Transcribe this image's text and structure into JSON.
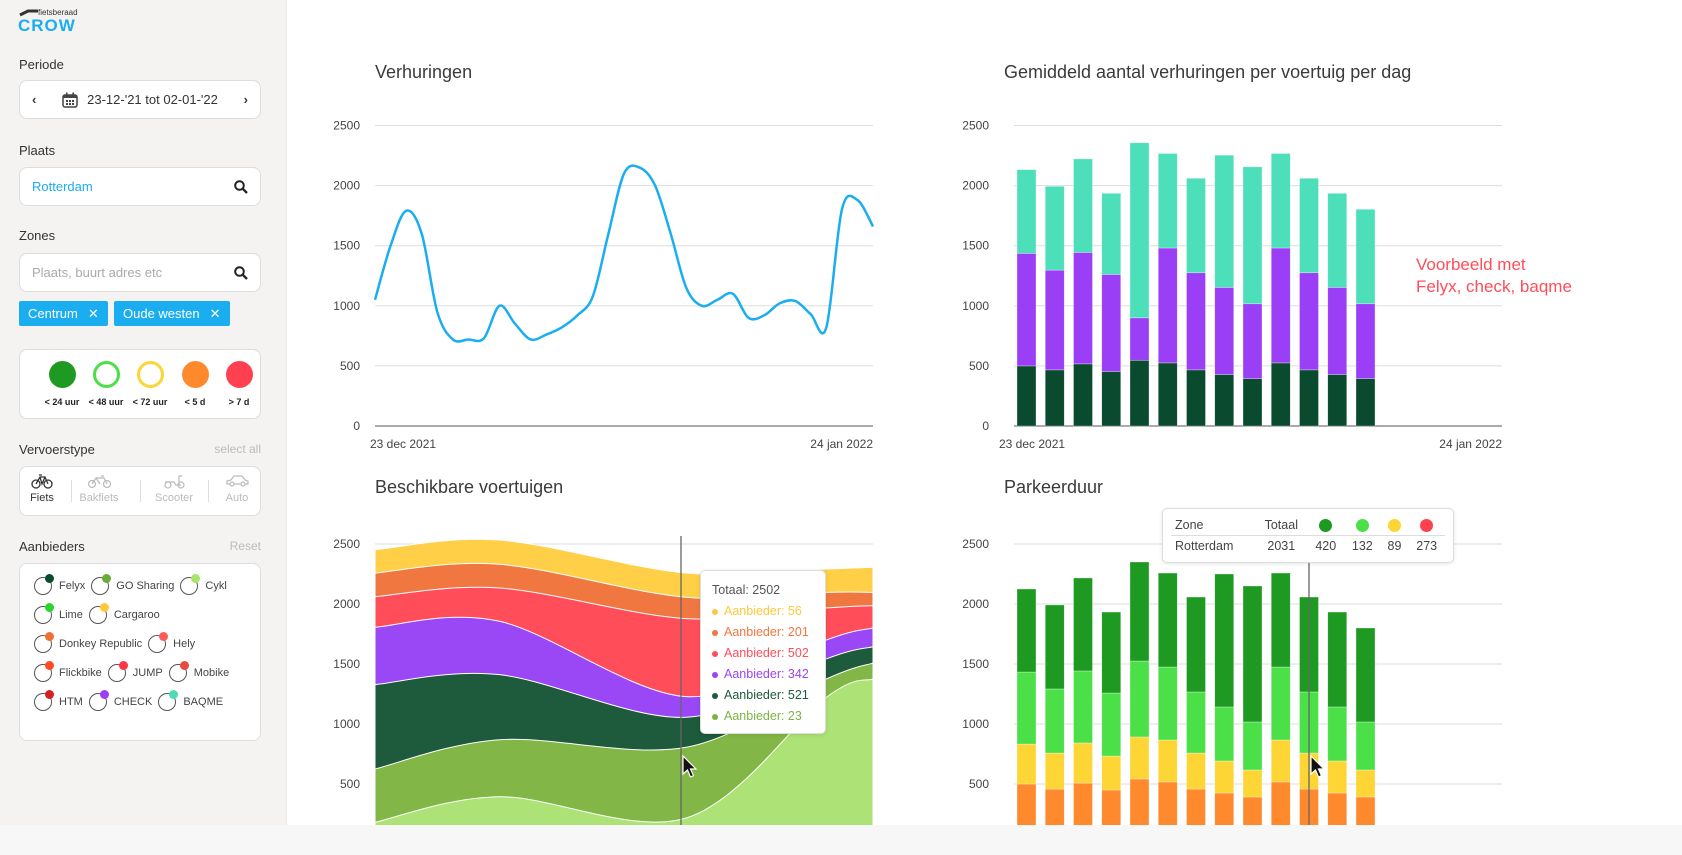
{
  "sidebar": {
    "logo": {
      "small": "fietsberaad",
      "big": "CROW"
    },
    "periode": {
      "label": "Periode",
      "value": "23-12-'21 tot 02-01-'22"
    },
    "plaats": {
      "label": "Plaats",
      "value": "Rotterdam"
    },
    "zones": {
      "label": "Zones",
      "placeholder": "Plaats, buurt adres etc",
      "chips": [
        "Centrum",
        "Oude westen"
      ]
    },
    "duration_legend": [
      {
        "label": "< 24 uur",
        "color": "#1e9a22",
        "filled": true
      },
      {
        "label": "< 48 uur",
        "color": "#4be048",
        "filled": false
      },
      {
        "label": "< 72 uur",
        "color": "#fdd535",
        "filled": false
      },
      {
        "label": "< 5 d",
        "color": "#ff8a2e",
        "filled": true
      },
      {
        "label": "> 7 d",
        "color": "#ff4050",
        "filled": true
      }
    ],
    "vervoerstype": {
      "label": "Vervoerstype",
      "select_all": "select all",
      "types": [
        {
          "label": "Fiets",
          "icon": "bicycle-icon",
          "active": true
        },
        {
          "label": "Bakfiets",
          "icon": "cargo-bike-icon",
          "active": false
        },
        {
          "label": "Scooter",
          "icon": "scooter-icon",
          "active": false
        },
        {
          "label": "Auto",
          "icon": "car-icon",
          "active": false
        }
      ]
    },
    "aanbieders": {
      "label": "Aanbieders",
      "reset": "Reset",
      "providers": [
        {
          "name": "Felyx",
          "color": "#0a4a2e"
        },
        {
          "name": "GO Sharing",
          "color": "#6aaa35"
        },
        {
          "name": "Cykl",
          "color": "#a6e46a"
        },
        {
          "name": "Lime",
          "color": "#2ed42e"
        },
        {
          "name": "Cargaroo",
          "color": "#ffc83a"
        },
        {
          "name": "Donkey Republic",
          "color": "#f07030"
        },
        {
          "name": "Hely",
          "color": "#ff5a5a"
        },
        {
          "name": "Flickbike",
          "color": "#ff4a22"
        },
        {
          "name": "JUMP",
          "color": "#ff3344"
        },
        {
          "name": "Mobike",
          "color": "#e84a40"
        },
        {
          "name": "HTM",
          "color": "#d42020"
        },
        {
          "name": "CHECK",
          "color": "#9a3ff5"
        },
        {
          "name": "BAQME",
          "color": "#4cdbb5"
        }
      ]
    }
  },
  "annotation": [
    "Voorbeeld met",
    "Felyx, check, baqme"
  ],
  "tooltip_area": {
    "total": "Totaal: 2502",
    "items": [
      {
        "label": "Aanbieder: 56",
        "color": "#ffc83a"
      },
      {
        "label": "Aanbieder: 201",
        "color": "#f07840"
      },
      {
        "label": "Aanbieder: 502",
        "color": "#ff4d5a"
      },
      {
        "label": "Aanbieder: 342",
        "color": "#9a44f5"
      },
      {
        "label": "Aanbieder: 521",
        "color": "#1e5a3c"
      },
      {
        "label": "Aanbieder: 23",
        "color": "#7db343"
      }
    ]
  },
  "tooltip_parkeer": {
    "headers": [
      "Zone",
      "Totaal"
    ],
    "header_colors": [
      "#1e9a22",
      "#4be048",
      "#fdd535",
      "#ff4050"
    ],
    "row": [
      "Rotterdam",
      "2031",
      "420",
      "132",
      "89",
      "273"
    ]
  },
  "chart_data": [
    {
      "type": "line",
      "title": "Verhuringen",
      "x": [
        "2021-12-23",
        "2021-12-24",
        "2021-12-25",
        "2021-12-26",
        "2021-12-27",
        "2021-12-28",
        "2021-12-29",
        "2021-12-30",
        "2021-12-31",
        "2022-01-01",
        "2022-01-02",
        "2022-01-03",
        "2022-01-04",
        "2022-01-05",
        "2022-01-06",
        "2022-01-07",
        "2022-01-08",
        "2022-01-09",
        "2022-01-10",
        "2022-01-11",
        "2022-01-12",
        "2022-01-13",
        "2022-01-14",
        "2022-01-15",
        "2022-01-16",
        "2022-01-17",
        "2022-01-18",
        "2022-01-19",
        "2022-01-20",
        "2022-01-21",
        "2022-01-22",
        "2022-01-23",
        "2022-01-24"
      ],
      "y": [
        1050,
        1500,
        1790,
        1600,
        950,
        720,
        720,
        730,
        1000,
        850,
        720,
        760,
        820,
        920,
        1080,
        1600,
        2100,
        2150,
        2000,
        1600,
        1150,
        1000,
        1050,
        1100,
        900,
        920,
        1020,
        1040,
        930,
        820,
        1800,
        1880,
        1660
      ],
      "xticks": [
        "23 dec 2021",
        "24 jan 2022"
      ],
      "yticks": [
        0,
        500,
        1000,
        1500,
        2000,
        2500
      ],
      "ylim": [
        0,
        2500
      ],
      "color": "#1aaef0",
      "grid": true
    },
    {
      "type": "bar",
      "stacked": true,
      "title": "Gemiddeld aantal verhuringen per voertuig per dag",
      "xticks": [
        "23 dec 2021",
        "24 jan 2022"
      ],
      "yticks": [
        0,
        500,
        1000,
        1500,
        2000,
        2500
      ],
      "ylim": [
        0,
        2500
      ],
      "grid": true,
      "series": [
        {
          "color": "#0a4a2e",
          "values": [
            500,
            467,
            517,
            453,
            547,
            525,
            467,
            428,
            394,
            525,
            467,
            428,
            394
          ]
        },
        {
          "color": "#9a3ff5",
          "values": [
            936,
            830,
            927,
            808,
            353,
            956,
            808,
            725,
            623,
            956,
            808,
            725,
            623
          ]
        },
        {
          "color": "#4cdfb9",
          "values": [
            697,
            697,
            778,
            675,
            1456,
            786,
            786,
            1100,
            1139,
            786,
            786,
            783,
            786
          ]
        }
      ]
    },
    {
      "type": "area",
      "stacked": true,
      "title": "Beschikbare voertuigen",
      "x": [
        "2021-12-23",
        "2021-12-31",
        "2022-01-12",
        "2022-01-21",
        "2022-01-24"
      ],
      "yticks": [
        500,
        1000,
        1500,
        2000,
        2500
      ],
      "ylim": [
        0,
        2500
      ],
      "grid": true,
      "series": [
        {
          "color": "#ade276",
          "values": [
            181,
            394,
            217,
            1222,
            1375
          ]
        },
        {
          "color": "#82b646",
          "values": [
            444,
            475,
            589,
            153,
            133
          ]
        },
        {
          "color": "#1e5a3c",
          "values": [
            703,
            542,
            250,
            167,
            136
          ]
        },
        {
          "color": "#9a48f6",
          "values": [
            478,
            445,
            172,
            158,
            156
          ]
        },
        {
          "color": "#ff4d5a",
          "values": [
            255,
            277,
            650,
            267,
            186
          ]
        },
        {
          "color": "#f07840",
          "values": [
            197,
            198,
            178,
            130,
            111
          ]
        },
        {
          "color": "#ffcf48",
          "values": [
            195,
            202,
            202,
            195,
            209
          ]
        }
      ]
    },
    {
      "type": "bar",
      "stacked": true,
      "title": "Parkeerduur",
      "yticks": [
        500,
        1000,
        1500,
        2000,
        2500
      ],
      "ylim": [
        0,
        2500
      ],
      "grid": true,
      "series": [
        {
          "color": "#ff8a2e",
          "values": [
            500,
            458,
            508,
            450,
            542,
            517,
            458,
            425,
            392,
            517,
            458,
            425,
            392
          ]
        },
        {
          "color": "#fdd535",
          "values": [
            333,
            300,
            334,
            283,
            350,
            350,
            300,
            267,
            225,
            350,
            300,
            267,
            225
          ]
        },
        {
          "color": "#4be048",
          "values": [
            600,
            534,
            600,
            525,
            633,
            608,
            509,
            450,
            400,
            608,
            509,
            450,
            400
          ]
        },
        {
          "color": "#1e9a22",
          "values": [
            692,
            700,
            775,
            675,
            825,
            783,
            791,
            1108,
            1133,
            783,
            791,
            791,
            783
          ]
        }
      ]
    }
  ]
}
